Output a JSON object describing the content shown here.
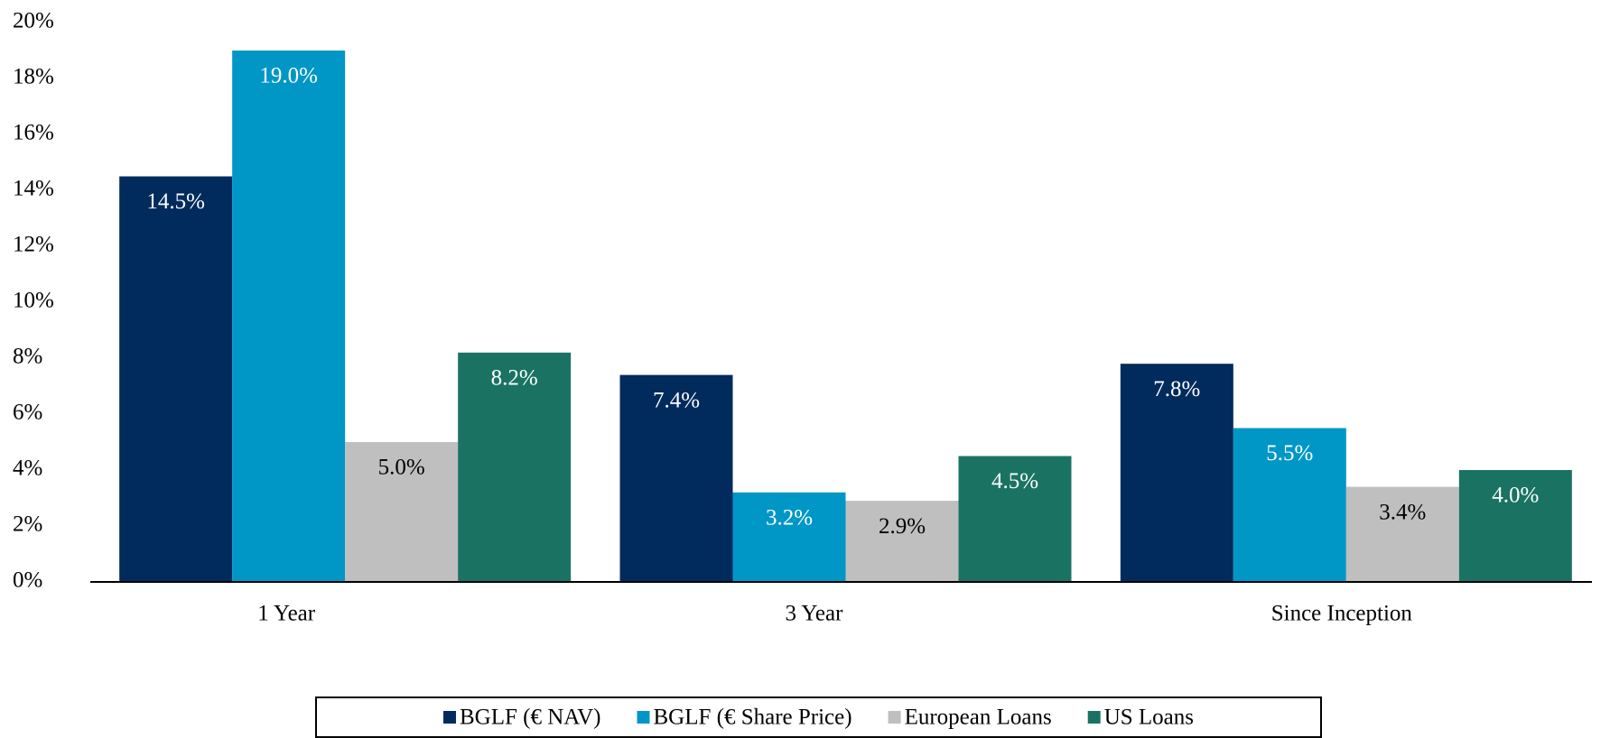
{
  "chart_data": {
    "type": "bar",
    "categories": [
      "1 Year",
      "3 Year",
      "Since Inception"
    ],
    "series": [
      {
        "name": "BGLF (€ NAV)",
        "color": "#002b5c",
        "values": [
          14.5,
          7.4,
          7.8
        ],
        "value_labels": [
          "14.5%",
          "7.4%",
          "7.8%"
        ]
      },
      {
        "name": "BGLF (€ Share Price)",
        "color": "#0097c7",
        "values": [
          19.0,
          3.2,
          5.5
        ],
        "value_labels": [
          "19.0%",
          "3.2%",
          "5.5%"
        ]
      },
      {
        "name": "European Loans",
        "color": "#bfbfbf",
        "values": [
          5.0,
          2.9,
          3.4
        ],
        "value_labels": [
          "5.0%",
          "2.9%",
          "3.4%"
        ]
      },
      {
        "name": "US Loans",
        "color": "#1a7362",
        "values": [
          8.2,
          4.5,
          4.0
        ],
        "value_labels": [
          "8.2%",
          "4.5%",
          "4.0%"
        ]
      }
    ],
    "ylim": [
      0,
      20
    ],
    "yticks": [
      {
        "value": 0,
        "label": "0%"
      },
      {
        "value": 2,
        "label": "2%"
      },
      {
        "value": 4,
        "label": "4%"
      },
      {
        "value": 6,
        "label": "6%"
      },
      {
        "value": 8,
        "label": "8%"
      },
      {
        "value": 10,
        "label": "10%"
      },
      {
        "value": 12,
        "label": "12%"
      },
      {
        "value": 14,
        "label": "14%"
      },
      {
        "value": 16,
        "label": "16%"
      },
      {
        "value": 18,
        "label": "18%"
      },
      {
        "value": 20,
        "label": "20%"
      }
    ],
    "grid": false,
    "legend": "bottom"
  }
}
